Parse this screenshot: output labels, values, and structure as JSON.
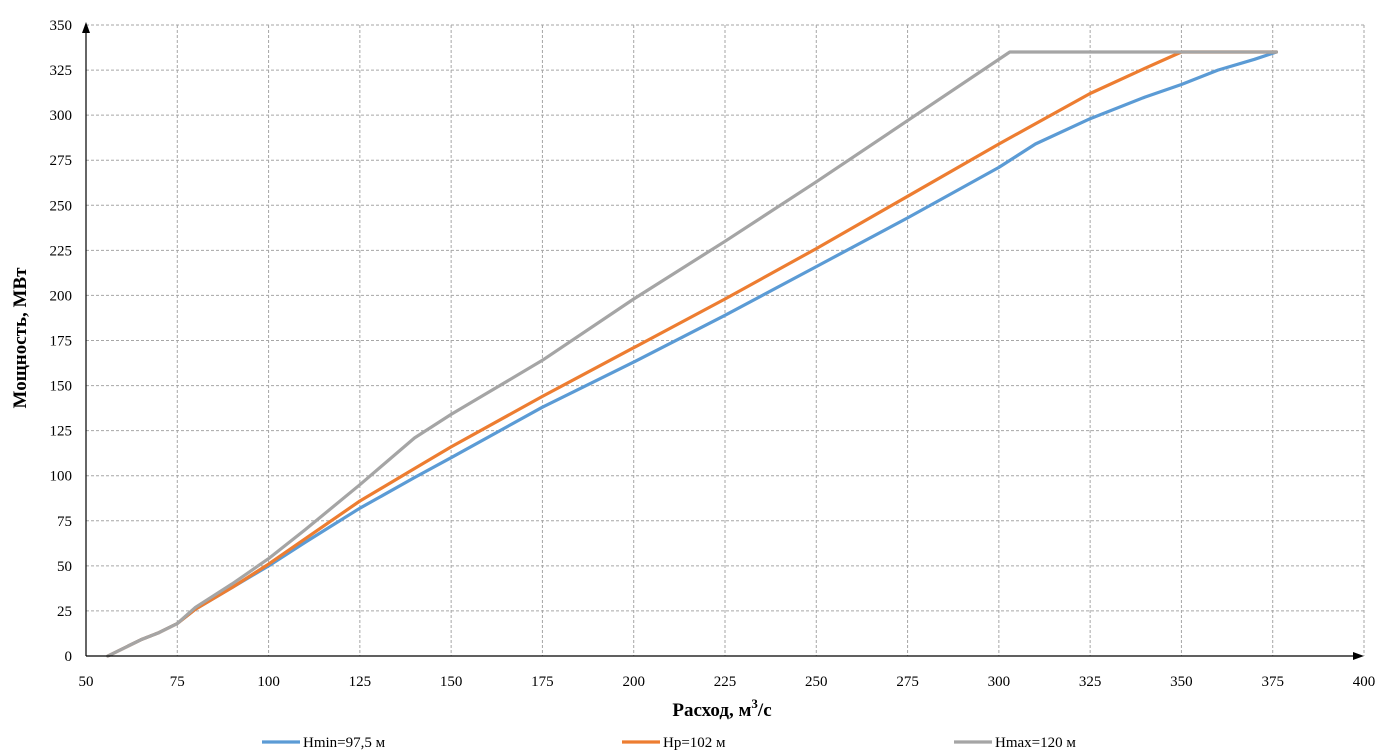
{
  "chart_data": {
    "type": "line",
    "title": "",
    "xlabel": "Расход, м",
    "xlabel_sup": "3",
    "xlabel_tail": "/с",
    "ylabel": "Мощность, МВт",
    "xlim": [
      50,
      400
    ],
    "ylim": [
      0,
      350
    ],
    "x_ticks": [
      50,
      75,
      100,
      125,
      150,
      175,
      200,
      225,
      250,
      275,
      300,
      325,
      350,
      375,
      400
    ],
    "y_ticks": [
      0,
      25,
      50,
      75,
      100,
      125,
      150,
      175,
      200,
      225,
      250,
      275,
      300,
      325,
      350
    ],
    "grid": true,
    "legend_position": "bottom",
    "series": [
      {
        "name": "Hmin=97,5 м",
        "color": "#5b9bd5",
        "points": [
          [
            56,
            0
          ],
          [
            65,
            9
          ],
          [
            70,
            13
          ],
          [
            75,
            18
          ],
          [
            80,
            26
          ],
          [
            90,
            38
          ],
          [
            100,
            50
          ],
          [
            110,
            63
          ],
          [
            125,
            82
          ],
          [
            140,
            99
          ],
          [
            150,
            110
          ],
          [
            175,
            138
          ],
          [
            200,
            163
          ],
          [
            225,
            189
          ],
          [
            250,
            216
          ],
          [
            275,
            243
          ],
          [
            300,
            271
          ],
          [
            310,
            284
          ],
          [
            325,
            298
          ],
          [
            340,
            310
          ],
          [
            350,
            317
          ],
          [
            360,
            325
          ],
          [
            370,
            331
          ],
          [
            376,
            335
          ]
        ]
      },
      {
        "name": "Hр=102 м",
        "color": "#ed7d31",
        "points": [
          [
            56,
            0
          ],
          [
            65,
            9
          ],
          [
            70,
            13
          ],
          [
            75,
            18
          ],
          [
            80,
            26
          ],
          [
            90,
            38
          ],
          [
            100,
            51
          ],
          [
            110,
            65
          ],
          [
            125,
            86
          ],
          [
            140,
            104
          ],
          [
            150,
            116
          ],
          [
            175,
            144
          ],
          [
            200,
            171
          ],
          [
            225,
            198
          ],
          [
            250,
            226
          ],
          [
            275,
            255
          ],
          [
            300,
            284
          ],
          [
            325,
            312
          ],
          [
            340,
            326
          ],
          [
            350,
            335
          ],
          [
            376,
            335
          ]
        ]
      },
      {
        "name": "Hmax=120 м",
        "color": "#a5a5a5",
        "points": [
          [
            56,
            0
          ],
          [
            65,
            9
          ],
          [
            70,
            13
          ],
          [
            75,
            18
          ],
          [
            80,
            27
          ],
          [
            90,
            40
          ],
          [
            100,
            54
          ],
          [
            110,
            70
          ],
          [
            125,
            95
          ],
          [
            140,
            121
          ],
          [
            150,
            134
          ],
          [
            175,
            164
          ],
          [
            200,
            198
          ],
          [
            225,
            230
          ],
          [
            250,
            263
          ],
          [
            275,
            297
          ],
          [
            303,
            335
          ],
          [
            376,
            335
          ]
        ]
      }
    ]
  }
}
